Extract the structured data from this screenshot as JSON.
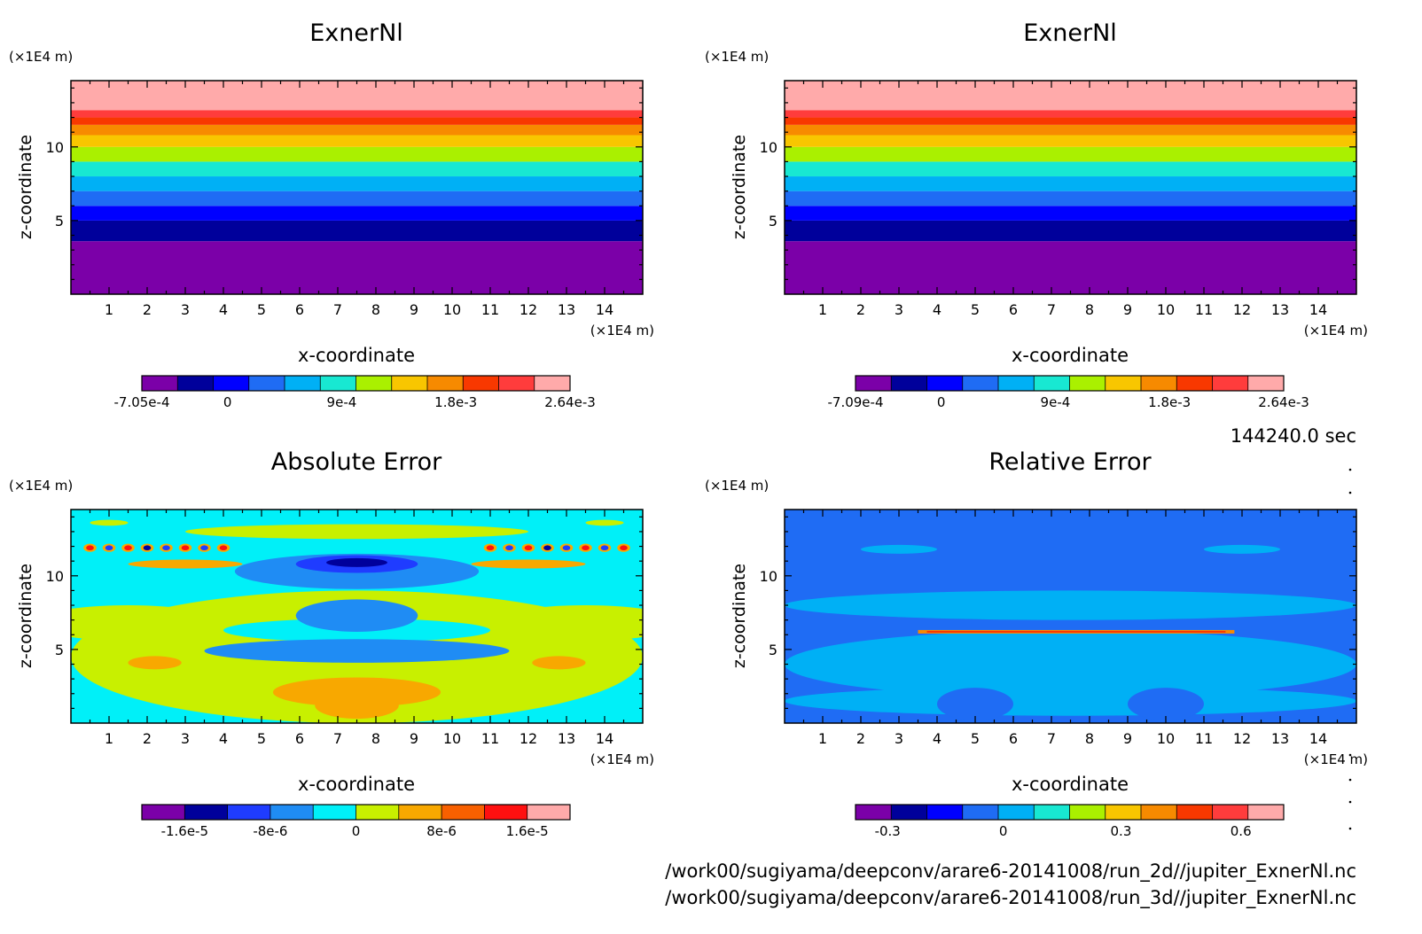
{
  "chart_data": [
    {
      "type": "heatmap",
      "title": "ExnerNl",
      "xlabel": "x-coordinate",
      "ylabel": "z-coordinate",
      "x_unit": "(×1E4 m)",
      "y_unit": "(×1E4 m)",
      "x_ticks": [
        "1",
        "2",
        "3",
        "4",
        "5",
        "6",
        "7",
        "8",
        "9",
        "10",
        "11",
        "12",
        "13",
        "14"
      ],
      "y_ticks": [
        "5",
        "10"
      ],
      "xlim": [
        0,
        15
      ],
      "ylim": [
        0,
        14.5
      ],
      "colorbar": {
        "colors": [
          "#7b00a8",
          "#00009b",
          "#0000ff",
          "#1f6cf4",
          "#00b0f5",
          "#18e8d2",
          "#aaf000",
          "#f8c600",
          "#f78a00",
          "#f83800",
          "#ff3c3c",
          "#ffaaaa"
        ],
        "labels": [
          "-7.05e-4",
          "0",
          "9e-4",
          "1.8e-3",
          "2.64e-3"
        ],
        "label_positions": [
          0.0,
          0.2,
          0.4667,
          0.7333,
          1.0
        ]
      },
      "bands": [
        {
          "z0": 0,
          "z1": 3.6,
          "level": 0
        },
        {
          "z0": 3.6,
          "z1": 5,
          "level": 1
        },
        {
          "z0": 5,
          "z1": 6,
          "level": 2
        },
        {
          "z0": 6,
          "z1": 7,
          "level": 3
        },
        {
          "z0": 7,
          "z1": 8,
          "level": 4
        },
        {
          "z0": 8,
          "z1": 9,
          "level": 5
        },
        {
          "z0": 9,
          "z1": 10,
          "level": 6
        },
        {
          "z0": 10,
          "z1": 10.8,
          "level": 7
        },
        {
          "z0": 10.8,
          "z1": 11.5,
          "level": 8
        },
        {
          "z0": 11.5,
          "z1": 12,
          "level": 9
        },
        {
          "z0": 12,
          "z1": 12.5,
          "level": 10
        },
        {
          "z0": 12.5,
          "z1": 14.5,
          "level": 11
        }
      ]
    },
    {
      "type": "heatmap",
      "title": "ExnerNl",
      "xlabel": "x-coordinate",
      "ylabel": "z-coordinate",
      "x_unit": "(×1E4 m)",
      "y_unit": "(×1E4 m)",
      "x_ticks": [
        "1",
        "2",
        "3",
        "4",
        "5",
        "6",
        "7",
        "8",
        "9",
        "10",
        "11",
        "12",
        "13",
        "14"
      ],
      "y_ticks": [
        "5",
        "10"
      ],
      "xlim": [
        0,
        15
      ],
      "ylim": [
        0,
        14.5
      ],
      "colorbar": {
        "colors": [
          "#7b00a8",
          "#00009b",
          "#0000ff",
          "#1f6cf4",
          "#00b0f5",
          "#18e8d2",
          "#aaf000",
          "#f8c600",
          "#f78a00",
          "#f83800",
          "#ff3c3c",
          "#ffaaaa"
        ],
        "labels": [
          "-7.09e-4",
          "0",
          "9e-4",
          "1.8e-3",
          "2.64e-3"
        ],
        "label_positions": [
          0.0,
          0.2,
          0.4667,
          0.7333,
          1.0
        ]
      },
      "bands": [
        {
          "z0": 0,
          "z1": 3.6,
          "level": 0
        },
        {
          "z0": 3.6,
          "z1": 5,
          "level": 1
        },
        {
          "z0": 5,
          "z1": 6,
          "level": 2
        },
        {
          "z0": 6,
          "z1": 7,
          "level": 3
        },
        {
          "z0": 7,
          "z1": 8,
          "level": 4
        },
        {
          "z0": 8,
          "z1": 9,
          "level": 5
        },
        {
          "z0": 9,
          "z1": 10,
          "level": 6
        },
        {
          "z0": 10,
          "z1": 10.8,
          "level": 7
        },
        {
          "z0": 10.8,
          "z1": 11.5,
          "level": 8
        },
        {
          "z0": 11.5,
          "z1": 12,
          "level": 9
        },
        {
          "z0": 12,
          "z1": 12.5,
          "level": 10
        },
        {
          "z0": 12.5,
          "z1": 14.5,
          "level": 11
        }
      ]
    },
    {
      "type": "heatmap",
      "title": "Absolute Error",
      "xlabel": "x-coordinate",
      "ylabel": "z-coordinate",
      "x_unit": "(×1E4 m)",
      "y_unit": "(×1E4 m)",
      "x_ticks": [
        "1",
        "2",
        "3",
        "4",
        "5",
        "6",
        "7",
        "8",
        "9",
        "10",
        "11",
        "12",
        "13",
        "14"
      ],
      "y_ticks": [
        "5",
        "10"
      ],
      "xlim": [
        0,
        15
      ],
      "ylim": [
        0,
        14.5
      ],
      "colorbar": {
        "colors": [
          "#7b00a8",
          "#00009b",
          "#1f3cff",
          "#1f8cf4",
          "#00f0f8",
          "#c8f000",
          "#f8a800",
          "#f86000",
          "#ff1010",
          "#ffaaaa"
        ],
        "labels": [
          "-1.6e-5",
          "-8e-6",
          "0",
          "8e-6",
          "1.6e-5"
        ],
        "label_positions": [
          0.1,
          0.3,
          0.5,
          0.7,
          0.9
        ]
      },
      "background_level": 4,
      "blobs": [
        {
          "x": 7.5,
          "z": 4.5,
          "rx": 7.5,
          "rz": 4.5,
          "level": 5
        },
        {
          "x": 1.5,
          "z": 6.8,
          "rx": 2.5,
          "rz": 1.2,
          "level": 5
        },
        {
          "x": 13.5,
          "z": 6.8,
          "rx": 2.5,
          "rz": 1.2,
          "level": 5
        },
        {
          "x": 7.5,
          "z": 2.1,
          "rx": 2.2,
          "rz": 1.0,
          "level": 6
        },
        {
          "x": 7.5,
          "z": 1.2,
          "rx": 1.1,
          "rz": 0.9,
          "level": 6
        },
        {
          "x": 2.2,
          "z": 4.1,
          "rx": 0.7,
          "rz": 0.45,
          "level": 6
        },
        {
          "x": 12.8,
          "z": 4.1,
          "rx": 0.7,
          "rz": 0.45,
          "level": 6
        },
        {
          "x": 7.5,
          "z": 6.3,
          "rx": 3.5,
          "rz": 0.8,
          "level": 4
        },
        {
          "x": 7.5,
          "z": 4.9,
          "rx": 4.0,
          "rz": 0.8,
          "level": 3
        },
        {
          "x": 7.5,
          "z": 7.3,
          "rx": 1.6,
          "rz": 1.1,
          "level": 3
        },
        {
          "x": 7.5,
          "z": 10.3,
          "rx": 3.2,
          "rz": 1.2,
          "level": 3
        },
        {
          "x": 7.5,
          "z": 10.8,
          "rx": 1.6,
          "rz": 0.6,
          "level": 2
        },
        {
          "x": 7.5,
          "z": 10.9,
          "rx": 0.8,
          "rz": 0.3,
          "level": 1
        },
        {
          "x": 3.0,
          "z": 10.8,
          "rx": 1.5,
          "rz": 0.3,
          "level": 6
        },
        {
          "x": 12.0,
          "z": 10.8,
          "rx": 1.5,
          "rz": 0.3,
          "level": 6
        },
        {
          "x": 7.5,
          "z": 13.0,
          "rx": 4.5,
          "rz": 0.5,
          "level": 5
        },
        {
          "x": 1.0,
          "z": 13.6,
          "rx": 0.5,
          "rz": 0.2,
          "level": 5
        },
        {
          "x": 14.0,
          "z": 13.6,
          "rx": 0.5,
          "rz": 0.2,
          "level": 5
        }
      ],
      "dots": {
        "z": 11.9,
        "x_left": [
          0.5,
          1.0,
          1.5,
          2.0,
          2.5,
          3.0,
          3.5,
          4.0
        ],
        "x_right": [
          11.0,
          11.5,
          12.0,
          12.5,
          13.0,
          13.5,
          14.0,
          14.5
        ]
      }
    },
    {
      "type": "heatmap",
      "title": "Relative Error",
      "xlabel": "x-coordinate",
      "ylabel": "z-coordinate",
      "x_unit": "(×1E4 m)",
      "y_unit": "(×1E4 m)",
      "x_ticks": [
        "1",
        "2",
        "3",
        "4",
        "5",
        "6",
        "7",
        "8",
        "9",
        "10",
        "11",
        "12",
        "13",
        "14"
      ],
      "y_ticks": [
        "5",
        "10"
      ],
      "xlim": [
        0,
        15
      ],
      "ylim": [
        0,
        14.5
      ],
      "colorbar": {
        "colors": [
          "#7b00a8",
          "#00009b",
          "#0000ff",
          "#1f6cf4",
          "#00b0f5",
          "#18e8d2",
          "#aaf000",
          "#f8c600",
          "#f78a00",
          "#f83800",
          "#ff3c3c",
          "#ffaaaa"
        ],
        "labels": [
          "-0.3",
          "0",
          "0.3",
          "0.6"
        ],
        "label_positions": [
          0.075,
          0.345,
          0.62,
          0.9
        ]
      },
      "background_level": 3,
      "blobs": [
        {
          "x": 7.5,
          "z": 4.0,
          "rx": 7.5,
          "rz": 2.3,
          "level": 4
        },
        {
          "x": 7.5,
          "z": 8.0,
          "rx": 7.5,
          "rz": 1.0,
          "level": 4
        },
        {
          "x": 7.5,
          "z": 1.5,
          "rx": 7.5,
          "rz": 1.0,
          "level": 4
        },
        {
          "x": 3.0,
          "z": 11.8,
          "rx": 1.0,
          "rz": 0.3,
          "level": 4
        },
        {
          "x": 12.0,
          "z": 11.8,
          "rx": 1.0,
          "rz": 0.3,
          "level": 4
        },
        {
          "x": 7.5,
          "z": 5.7,
          "rx": 2.0,
          "rz": 0.4,
          "level": 4
        },
        {
          "x": 5.0,
          "z": 1.3,
          "rx": 1.0,
          "rz": 1.1,
          "level": 3
        },
        {
          "x": 10.0,
          "z": 1.3,
          "rx": 1.0,
          "rz": 1.1,
          "level": 3
        }
      ],
      "streak": {
        "z": 6.2,
        "x0": 3.5,
        "x1": 11.8,
        "level": 8
      }
    }
  ],
  "time_label": "144240.0 sec",
  "file_paths": [
    "/work00/sugiyama/deepconv/arare6-20141008/run_2d//jupiter_ExnerNl.nc",
    "/work00/sugiyama/deepconv/arare6-20141008/run_3d//jupiter_ExnerNl.nc"
  ]
}
